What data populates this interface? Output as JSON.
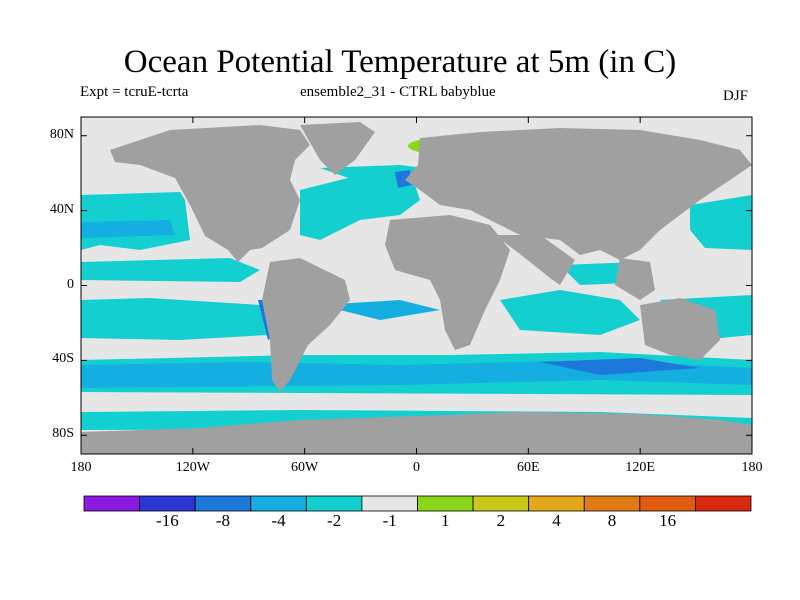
{
  "title": "Ocean Potential Temperature at 5m (in C)",
  "left_label": "Expt = tcruE-tcrta",
  "center_label": "ensemble2_31 - CTRL babyblue",
  "right_label": "DJF",
  "lat_ticks": [
    {
      "label": "80N",
      "lat": 80
    },
    {
      "label": "40N",
      "lat": 40
    },
    {
      "label": "0",
      "lat": 0
    },
    {
      "label": "40S",
      "lat": -40
    },
    {
      "label": "80S",
      "lat": -80
    }
  ],
  "lon_ticks": [
    {
      "label": "180",
      "lon": -180
    },
    {
      "label": "120W",
      "lon": -120
    },
    {
      "label": "60W",
      "lon": -60
    },
    {
      "label": "0",
      "lon": 0
    },
    {
      "label": "60E",
      "lon": 60
    },
    {
      "label": "120E",
      "lon": 120
    },
    {
      "label": "180",
      "lon": 180
    }
  ],
  "colorbar": {
    "colors": [
      "#8a1ae0",
      "#2c35d6",
      "#1e78dc",
      "#14aee0",
      "#14cfd0",
      "#e6e6e6",
      "#8cd61a",
      "#c8c81a",
      "#e2a81a",
      "#e07a14",
      "#e05a10",
      "#d82a10"
    ],
    "labels": [
      "-16",
      "-8",
      "-4",
      "-2",
      "-1",
      "1",
      "2",
      "4",
      "8",
      "16"
    ]
  },
  "colors": {
    "land": "#a0a0a0",
    "neutral": "#e6e6e6",
    "minus2_minus1": "#14cfd0",
    "minus4_minus2": "#14aee0",
    "minus8_minus4": "#1e78dc",
    "plus1_plus2": "#8cd61a"
  }
}
